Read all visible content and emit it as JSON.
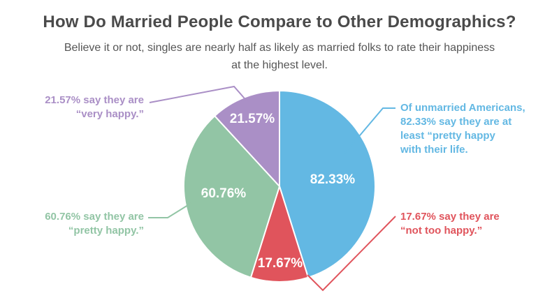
{
  "header": {
    "title": "How Do Married People Compare to Other Demographics?",
    "subtitle": "Believe it or not, singles are nearly half as likely as married folks to rate their happiness at the highest level."
  },
  "chart_data": {
    "type": "pie",
    "title": "How Do Married People Compare to Other Demographics?",
    "subtitle": "Believe it or not, singles are nearly half as likely as married folks to rate their happiness at the highest level.",
    "slices": [
      {
        "label": "82.33%",
        "value": 82.33,
        "color": "#63b8e3"
      },
      {
        "label": "17.67%",
        "value": 17.67,
        "color": "#e0545c"
      },
      {
        "label": "60.76%",
        "value": 60.76,
        "color": "#92c5a5"
      },
      {
        "label": "21.57%",
        "value": 21.57,
        "color": "#aa8fc6"
      }
    ]
  },
  "callouts": {
    "blue": {
      "lines": [
        "Of unmarried Americans,",
        "82.33% say they are at",
        "least “pretty happy",
        "with their life."
      ],
      "color": "#63b8e3"
    },
    "red": {
      "lines": [
        "17.67% say they are",
        "“not too happy.”"
      ],
      "color": "#e0545c"
    },
    "green": {
      "lines": [
        "60.76% say they are",
        "“pretty happy.”"
      ],
      "color": "#92c5a5"
    },
    "purple": {
      "lines": [
        "21.57% say they are",
        "“very happy.”"
      ],
      "color": "#aa8fc6"
    }
  }
}
